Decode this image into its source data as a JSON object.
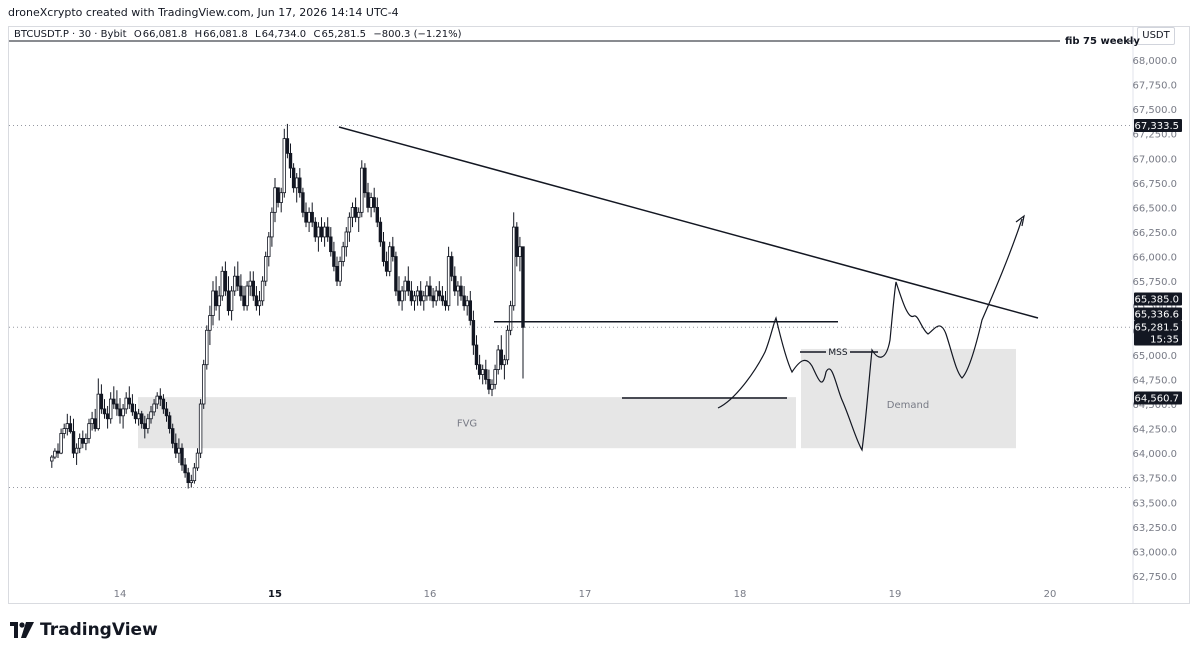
{
  "header": {
    "attribution": "droneXcrypto created with TradingView.com, Jun 17, 2026 14:14 UTC-4"
  },
  "legend": {
    "symbol": "BTCUSDT.P · 30 · Bybit",
    "open_label": "O",
    "open": "66,081.8",
    "high_label": "H",
    "high": "66,081.8",
    "low_label": "L",
    "low": "64,734.0",
    "close_label": "C",
    "close": "65,281.5",
    "change": "−800.3 (−1.21%)"
  },
  "currency": "USDT",
  "brand": "TradingView",
  "chart_data": {
    "type": "candlestick",
    "y_axis": {
      "min": 62750,
      "max": 68000,
      "ticks": [
        "68,000.0",
        "67,750.0",
        "67,500.0",
        "67,250.0",
        "67,000.0",
        "66,750.0",
        "66,500.0",
        "66,250.0",
        "66,000.0",
        "65,750.0",
        "65,500.0",
        "65,250.0",
        "65,000.0",
        "64,750.0",
        "64,500.0",
        "64,250.0",
        "64,000.0",
        "63,750.0",
        "63,500.0",
        "63,250.0",
        "63,000.0",
        "62,750.0"
      ],
      "tick_values": [
        68000,
        67750,
        67500,
        67250,
        67000,
        66750,
        66500,
        66250,
        66000,
        65750,
        65500,
        65250,
        65000,
        64750,
        64500,
        64250,
        64000,
        63750,
        63500,
        63250,
        63000,
        62750
      ]
    },
    "x_axis": {
      "ticks": [
        "14",
        "15",
        "16",
        "17",
        "18",
        "19",
        "20"
      ],
      "tick_days": [
        14,
        15,
        16,
        17,
        18,
        19,
        20
      ],
      "bold": [
        "15"
      ]
    },
    "price_labels": [
      {
        "text": "67,333.5",
        "value": 67333.5,
        "style": "dark"
      },
      {
        "text": "65,385.0",
        "value": 65385.0,
        "style": "dark"
      },
      {
        "text": "65,336.6",
        "value": 65336.6,
        "style": "dark"
      },
      {
        "text": "65,281.5",
        "value": 65281.5,
        "style": "dark"
      },
      {
        "text": "15:35",
        "value": 65160,
        "style": "dark"
      },
      {
        "text": "64,560.7",
        "value": 64560.7,
        "style": "dark"
      }
    ],
    "annotations": {
      "fib_label": "fib 75 weekly",
      "fvg_label": "FVG",
      "demand_label": "Demand",
      "mss_label": "MSS"
    },
    "candles": [
      [
        13.56,
        63920,
        63980,
        63850,
        63960
      ],
      [
        13.58,
        63960,
        64050,
        63940,
        64020
      ],
      [
        13.6,
        64020,
        64100,
        63950,
        64000
      ],
      [
        13.62,
        64000,
        64250,
        63990,
        64200
      ],
      [
        13.64,
        64200,
        64300,
        64150,
        64250
      ],
      [
        13.66,
        64250,
        64400,
        64180,
        64300
      ],
      [
        13.68,
        64300,
        64380,
        64200,
        64220
      ],
      [
        13.7,
        64220,
        64350,
        63950,
        64000
      ],
      [
        13.72,
        64000,
        64100,
        63880,
        64050
      ],
      [
        13.74,
        64050,
        64200,
        64000,
        64150
      ],
      [
        13.76,
        64150,
        64230,
        64050,
        64100
      ],
      [
        13.78,
        64100,
        64200,
        64030,
        64150
      ],
      [
        13.8,
        64150,
        64350,
        64100,
        64300
      ],
      [
        13.82,
        64300,
        64420,
        64230,
        64350
      ],
      [
        13.84,
        64350,
        64450,
        64220,
        64250
      ],
      [
        13.86,
        64250,
        64760,
        64230,
        64600
      ],
      [
        13.88,
        64600,
        64700,
        64400,
        64450
      ],
      [
        13.9,
        64450,
        64550,
        64350,
        64400
      ],
      [
        13.92,
        64400,
        64480,
        64250,
        64350
      ],
      [
        13.94,
        64350,
        64620,
        64300,
        64550
      ],
      [
        13.96,
        64550,
        64680,
        64450,
        64500
      ],
      [
        13.98,
        64500,
        64640,
        64380,
        64450
      ],
      [
        14.0,
        64450,
        64560,
        64300,
        64380
      ],
      [
        14.02,
        64380,
        64500,
        64250,
        64450
      ],
      [
        14.04,
        64450,
        64620,
        64400,
        64560
      ],
      [
        14.06,
        64560,
        64680,
        64450,
        64500
      ],
      [
        14.08,
        64500,
        64600,
        64380,
        64420
      ],
      [
        14.1,
        64420,
        64500,
        64300,
        64350
      ],
      [
        14.12,
        64350,
        64450,
        64280,
        64400
      ],
      [
        14.14,
        64400,
        64430,
        64250,
        64300
      ],
      [
        14.16,
        64300,
        64380,
        64150,
        64250
      ],
      [
        14.18,
        64250,
        64400,
        64200,
        64350
      ],
      [
        14.2,
        64350,
        64480,
        64300,
        64420
      ],
      [
        14.22,
        64420,
        64550,
        64380,
        64500
      ],
      [
        14.24,
        64500,
        64620,
        64450,
        64580
      ],
      [
        14.26,
        64580,
        64660,
        64480,
        64550
      ],
      [
        14.28,
        64550,
        64600,
        64400,
        64450
      ],
      [
        14.3,
        64450,
        64520,
        64320,
        64380
      ],
      [
        14.32,
        64380,
        64420,
        64200,
        64250
      ],
      [
        14.34,
        64250,
        64300,
        64050,
        64100
      ],
      [
        14.36,
        64100,
        64200,
        63950,
        64000
      ],
      [
        14.38,
        64000,
        64150,
        63900,
        64050
      ],
      [
        14.4,
        64050,
        64100,
        63820,
        63880
      ],
      [
        14.42,
        63880,
        63950,
        63750,
        63800
      ],
      [
        14.44,
        63800,
        63850,
        63640,
        63700
      ],
      [
        14.46,
        63700,
        63780,
        63650,
        63720
      ],
      [
        14.48,
        63720,
        63900,
        63690,
        63850
      ],
      [
        14.5,
        63850,
        64050,
        63820,
        64000
      ],
      [
        14.52,
        64000,
        64550,
        63950,
        64500
      ],
      [
        14.54,
        64500,
        64950,
        64450,
        64900
      ],
      [
        14.56,
        64900,
        65300,
        64850,
        65250
      ],
      [
        14.58,
        65250,
        65500,
        65100,
        65400
      ],
      [
        14.6,
        65400,
        65750,
        65300,
        65650
      ],
      [
        14.62,
        65650,
        65800,
        65450,
        65500
      ],
      [
        14.64,
        65500,
        65700,
        65350,
        65600
      ],
      [
        14.66,
        65600,
        65900,
        65550,
        65850
      ],
      [
        14.68,
        65850,
        65950,
        65600,
        65650
      ],
      [
        14.7,
        65650,
        65800,
        65400,
        65450
      ],
      [
        14.72,
        65450,
        65700,
        65350,
        65650
      ],
      [
        14.74,
        65650,
        65900,
        65600,
        65800
      ],
      [
        14.76,
        65800,
        65950,
        65650,
        65700
      ],
      [
        14.78,
        65700,
        65820,
        65550,
        65600
      ],
      [
        14.8,
        65600,
        65700,
        65450,
        65500
      ],
      [
        14.82,
        65500,
        65750,
        65450,
        65700
      ],
      [
        14.84,
        65700,
        65850,
        65600,
        65750
      ],
      [
        14.86,
        65750,
        65850,
        65550,
        65600
      ],
      [
        14.88,
        65600,
        65700,
        65450,
        65500
      ],
      [
        14.9,
        65500,
        65650,
        65400,
        65550
      ],
      [
        14.92,
        65550,
        65800,
        65500,
        65750
      ],
      [
        14.94,
        65750,
        66050,
        65700,
        66000
      ],
      [
        14.96,
        66000,
        66250,
        65900,
        66200
      ],
      [
        14.98,
        66200,
        66500,
        66100,
        66450
      ],
      [
        15.0,
        66450,
        66800,
        66350,
        66700
      ],
      [
        15.02,
        66700,
        66650,
        66500,
        66550
      ],
      [
        15.04,
        66550,
        66700,
        66450,
        66650
      ],
      [
        15.06,
        66650,
        67300,
        66600,
        67200
      ],
      [
        15.08,
        67200,
        67350,
        67000,
        67050
      ],
      [
        15.1,
        67050,
        67150,
        66800,
        66900
      ],
      [
        15.12,
        66900,
        66950,
        66650,
        66700
      ],
      [
        15.14,
        66700,
        66850,
        66550,
        66800
      ],
      [
        15.16,
        66800,
        66900,
        66600,
        66650
      ],
      [
        15.18,
        66650,
        66700,
        66400,
        66450
      ],
      [
        15.2,
        66450,
        66550,
        66300,
        66350
      ],
      [
        15.22,
        66350,
        66500,
        66250,
        66450
      ],
      [
        15.24,
        66450,
        66550,
        66300,
        66350
      ],
      [
        15.26,
        66350,
        66400,
        66150,
        66200
      ],
      [
        15.28,
        66200,
        66350,
        66050,
        66300
      ],
      [
        15.3,
        66300,
        66400,
        66150,
        66200
      ],
      [
        15.32,
        66200,
        66350,
        66100,
        66300
      ],
      [
        15.34,
        66300,
        66400,
        66150,
        66200
      ],
      [
        15.36,
        66200,
        66300,
        66000,
        66050
      ],
      [
        15.38,
        66050,
        66150,
        65850,
        65900
      ],
      [
        15.4,
        65900,
        66000,
        65700,
        65750
      ],
      [
        15.42,
        65750,
        66000,
        65700,
        65950
      ],
      [
        15.44,
        65950,
        66150,
        65900,
        66100
      ],
      [
        15.46,
        66100,
        66300,
        66000,
        66250
      ],
      [
        15.48,
        66250,
        66450,
        66150,
        66400
      ],
      [
        15.5,
        66400,
        66550,
        66300,
        66500
      ],
      [
        15.52,
        66500,
        66600,
        66350,
        66400
      ],
      [
        15.54,
        66400,
        66500,
        66250,
        66450
      ],
      [
        15.56,
        66450,
        66980,
        66400,
        66900
      ],
      [
        15.58,
        66900,
        66950,
        66600,
        66650
      ],
      [
        15.6,
        66650,
        66750,
        66450,
        66500
      ],
      [
        15.62,
        66500,
        66650,
        66400,
        66600
      ],
      [
        15.64,
        66600,
        66700,
        66450,
        66500
      ],
      [
        15.66,
        66500,
        66600,
        66300,
        66350
      ],
      [
        15.68,
        66350,
        66400,
        66100,
        66150
      ],
      [
        15.7,
        66150,
        66250,
        65900,
        65950
      ],
      [
        15.72,
        65950,
        66050,
        65800,
        65850
      ],
      [
        15.74,
        65850,
        66150,
        65800,
        66100
      ],
      [
        15.76,
        66100,
        66200,
        65950,
        66000
      ],
      [
        15.78,
        66000,
        66050,
        65600,
        65650
      ],
      [
        15.8,
        65650,
        65800,
        65500,
        65550
      ],
      [
        15.82,
        65550,
        65700,
        65450,
        65650
      ],
      [
        15.84,
        65650,
        65800,
        65550,
        65750
      ],
      [
        15.86,
        65750,
        65900,
        65600,
        65650
      ],
      [
        15.88,
        65650,
        65750,
        65500,
        65550
      ],
      [
        15.9,
        65550,
        65650,
        65450,
        65600
      ],
      [
        15.92,
        65600,
        65700,
        65500,
        65650
      ],
      [
        15.94,
        65650,
        65750,
        65500,
        65550
      ],
      [
        15.96,
        65550,
        65650,
        65450,
        65600
      ],
      [
        15.98,
        65600,
        65750,
        65550,
        65700
      ],
      [
        16.0,
        65700,
        65800,
        65550,
        65600
      ],
      [
        16.02,
        65600,
        65680,
        65480,
        65550
      ],
      [
        16.04,
        65550,
        65700,
        65500,
        65650
      ],
      [
        16.06,
        65650,
        65750,
        65550,
        65600
      ],
      [
        16.08,
        65600,
        65700,
        65500,
        65550
      ],
      [
        16.1,
        65550,
        65650,
        65450,
        65500
      ],
      [
        16.12,
        65500,
        66100,
        65450,
        66000
      ],
      [
        16.14,
        66000,
        66050,
        65750,
        65800
      ],
      [
        16.16,
        65800,
        65900,
        65600,
        65650
      ],
      [
        16.18,
        65650,
        65750,
        65500,
        65700
      ],
      [
        16.2,
        65700,
        65800,
        65550,
        65600
      ],
      [
        16.22,
        65600,
        65700,
        65450,
        65500
      ],
      [
        16.24,
        65500,
        65600,
        65400,
        65550
      ],
      [
        16.26,
        65550,
        65650,
        65300,
        65350
      ],
      [
        16.28,
        65350,
        65450,
        65000,
        65100
      ],
      [
        16.3,
        65100,
        65200,
        64850,
        64900
      ],
      [
        16.32,
        64900,
        65000,
        64750,
        64800
      ],
      [
        16.34,
        64800,
        64900,
        64700,
        64850
      ],
      [
        16.36,
        64850,
        64950,
        64700,
        64750
      ],
      [
        16.38,
        64750,
        64850,
        64600,
        64650
      ],
      [
        16.4,
        64650,
        64750,
        64580,
        64700
      ],
      [
        16.42,
        64700,
        64900,
        64650,
        64850
      ],
      [
        16.44,
        64850,
        65100,
        64800,
        65050
      ],
      [
        16.46,
        65050,
        65200,
        64850,
        64900
      ],
      [
        16.48,
        64900,
        65000,
        64750,
        64950
      ],
      [
        16.5,
        64950,
        65300,
        64900,
        65250
      ],
      [
        16.52,
        65250,
        65550,
        65200,
        65500
      ],
      [
        16.54,
        65500,
        66450,
        65450,
        66300
      ],
      [
        16.56,
        66300,
        66350,
        65900,
        66000
      ],
      [
        16.58,
        66000,
        66200,
        65850,
        66100
      ],
      [
        16.6,
        66100,
        66100,
        64760,
        65280
      ]
    ]
  }
}
